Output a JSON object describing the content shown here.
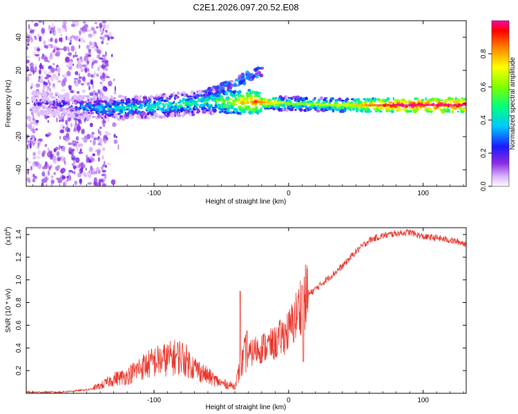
{
  "title": "C2E1.2026.097.20.52.E08",
  "colorbar": {
    "label": "Normalized spectral amplitude",
    "ticks": [
      "0.0",
      "0.2",
      "0.4",
      "0.6",
      "0.8"
    ],
    "tick_values": [
      0,
      0.2,
      0.4,
      0.6,
      0.8
    ],
    "range": [
      0,
      1
    ]
  },
  "chart_data": [
    {
      "type": "heatmap",
      "title": "C2E1.2026.097.20.52.E08",
      "xlabel": "Height of straight line (km)",
      "ylabel": "Frequency (Hz)",
      "xlim": [
        -195,
        132
      ],
      "ylim": [
        -50,
        50
      ],
      "xticks": [
        -100,
        0,
        100
      ],
      "xtick_labels": [
        "-100",
        "0",
        "100"
      ],
      "yticks": [
        -40,
        -20,
        0,
        20,
        40
      ],
      "ytick_labels": [
        "-40",
        "-20",
        "0",
        "20",
        "40"
      ],
      "colorscale": "rainbow (0 = white/violet, 1 = magenta/red)",
      "description_points": [
        {
          "x": -180,
          "y": 0,
          "value": 0.15
        },
        {
          "x": -140,
          "y": -3,
          "value": 0.4
        },
        {
          "x": -100,
          "y": -2,
          "value": 0.45
        },
        {
          "x": -60,
          "y": 1,
          "value": 0.5
        },
        {
          "x": -25,
          "y": 1,
          "value": 0.85
        },
        {
          "x": 0,
          "y": 0,
          "value": 0.55
        },
        {
          "x": 40,
          "y": -1,
          "value": 0.65
        },
        {
          "x": 80,
          "y": -1,
          "value": 0.95
        },
        {
          "x": 120,
          "y": -1,
          "value": 0.95
        }
      ]
    },
    {
      "type": "line",
      "xlabel": "Height of straight line (km)",
      "ylabel": "SNR (10 * v/v)",
      "yscale_label": "(x10",
      "yscale_exp": "4",
      "yscale_close": ")",
      "xlim": [
        -195,
        132
      ],
      "ylim": [
        0,
        1.46
      ],
      "xticks": [
        -100,
        0,
        100
      ],
      "xtick_labels": [
        "-100",
        "0",
        "100"
      ],
      "yticks": [
        0.2,
        0.4,
        0.6,
        0.8,
        1.0,
        1.2,
        1.4
      ],
      "ytick_labels": [
        "0.2",
        "0.4",
        "0.6",
        "0.8",
        "1.0",
        "1.2",
        "1.4"
      ],
      "color": "#e8342a",
      "series": [
        {
          "name": "SNR",
          "x": [
            -195,
            -170,
            -150,
            -140,
            -130,
            -120,
            -110,
            -100,
            -90,
            -80,
            -70,
            -60,
            -50,
            -40,
            -35,
            -30,
            -25,
            -20,
            -15,
            -10,
            -5,
            0,
            5,
            10,
            20,
            30,
            40,
            50,
            60,
            70,
            80,
            90,
            100,
            110,
            120,
            132
          ],
          "y": [
            0.01,
            0.01,
            0.03,
            0.05,
            0.1,
            0.12,
            0.18,
            0.22,
            0.24,
            0.26,
            0.18,
            0.12,
            0.07,
            0.05,
            0.2,
            0.33,
            0.38,
            0.4,
            0.42,
            0.44,
            0.5,
            0.55,
            0.66,
            0.82,
            0.92,
            1.02,
            1.12,
            1.25,
            1.35,
            1.39,
            1.41,
            1.42,
            1.38,
            1.37,
            1.35,
            1.32
          ]
        }
      ],
      "spikes": [
        {
          "x": -36,
          "y": 0.9
        },
        {
          "x": -31,
          "y": 0.55
        },
        {
          "x": 10,
          "y": 0.95
        },
        {
          "x": 11,
          "y": 0.28
        }
      ]
    }
  ]
}
